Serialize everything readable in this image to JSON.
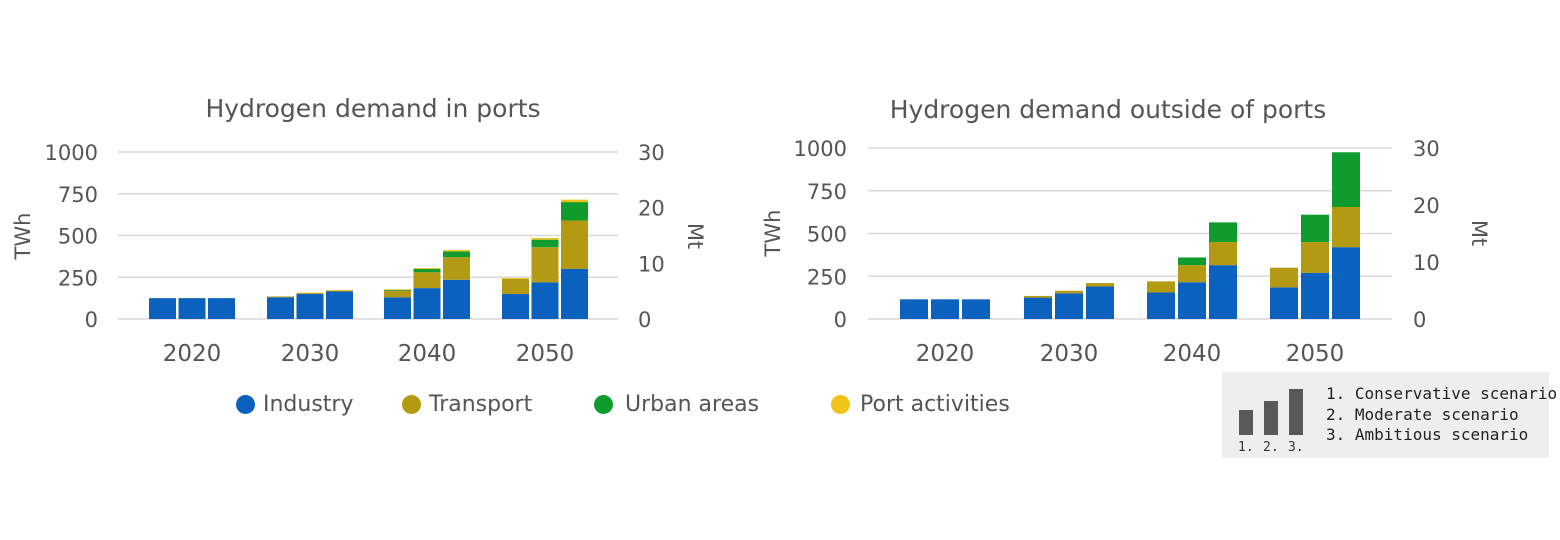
{
  "colors": {
    "Industry": "#0a62be",
    "Transport": "#b49a12",
    "Urban areas": "#0f9b2e",
    "Port activities": "#f2c417"
  },
  "legend": [
    {
      "label": "Industry",
      "color": "#0a62be"
    },
    {
      "label": "Transport",
      "color": "#b49a12"
    },
    {
      "label": "Urban areas",
      "color": "#0f9b2e"
    },
    {
      "label": "Port activities",
      "color": "#f2c417"
    }
  ],
  "scenario_legend": {
    "bar_numbers": [
      "1.",
      "2.",
      "3."
    ],
    "lines": [
      "1. Conservative scenario",
      "2. Moderate scenario",
      "3. Ambitious scenario"
    ]
  },
  "chart_data": [
    {
      "type": "bar",
      "stacked": true,
      "title": "Hydrogen demand in ports",
      "ylabel": "TWh",
      "y2label": "Mt",
      "ylim": [
        0,
        1000
      ],
      "yticks": [
        0,
        250,
        500,
        750,
        1000
      ],
      "y2lim": [
        0,
        30
      ],
      "y2ticks": [
        0,
        10,
        20,
        30
      ],
      "grid": true,
      "categories": [
        "2020",
        "2030",
        "2040",
        "2050"
      ],
      "scenarios": [
        "1.",
        "2.",
        "3."
      ],
      "series": [
        {
          "name": "Industry",
          "values": [
            [
              125,
              125,
              125
            ],
            [
              130,
              150,
              165
            ],
            [
              130,
              185,
              235
            ],
            [
              150,
              220,
              300
            ]
          ]
        },
        {
          "name": "Transport",
          "values": [
            [
              0,
              0,
              0
            ],
            [
              5,
              5,
              5
            ],
            [
              40,
              95,
              135
            ],
            [
              90,
              210,
              290
            ]
          ]
        },
        {
          "name": "Urban areas",
          "values": [
            [
              0,
              0,
              0
            ],
            [
              0,
              0,
              0
            ],
            [
              5,
              20,
              35
            ],
            [
              0,
              45,
              110
            ]
          ]
        },
        {
          "name": "Port activities",
          "values": [
            [
              0,
              0,
              0
            ],
            [
              0,
              3,
              3
            ],
            [
              3,
              5,
              8
            ],
            [
              5,
              10,
              15
            ]
          ]
        }
      ]
    },
    {
      "type": "bar",
      "stacked": true,
      "title": "Hydrogen demand outside of ports",
      "ylabel": "TWh",
      "y2label": "Mt",
      "ylim": [
        0,
        1000
      ],
      "yticks": [
        0,
        250,
        500,
        750,
        1000
      ],
      "y2lim": [
        0,
        30
      ],
      "y2ticks": [
        0,
        10,
        20,
        30
      ],
      "grid": true,
      "categories": [
        "2020",
        "2030",
        "2040",
        "2050"
      ],
      "scenarios": [
        "1.",
        "2.",
        "3."
      ],
      "series": [
        {
          "name": "Industry",
          "values": [
            [
              115,
              115,
              115
            ],
            [
              125,
              150,
              190
            ],
            [
              155,
              215,
              315
            ],
            [
              185,
              270,
              420
            ]
          ]
        },
        {
          "name": "Transport",
          "values": [
            [
              0,
              0,
              0
            ],
            [
              10,
              15,
              20
            ],
            [
              65,
              100,
              135
            ],
            [
              115,
              180,
              235
            ]
          ]
        },
        {
          "name": "Urban areas",
          "values": [
            [
              0,
              0,
              0
            ],
            [
              0,
              0,
              0
            ],
            [
              0,
              45,
              115
            ],
            [
              0,
              160,
              320
            ]
          ]
        },
        {
          "name": "Port activities",
          "values": [
            [
              0,
              0,
              0
            ],
            [
              0,
              0,
              0
            ],
            [
              0,
              0,
              0
            ],
            [
              0,
              0,
              0
            ]
          ]
        }
      ]
    }
  ]
}
